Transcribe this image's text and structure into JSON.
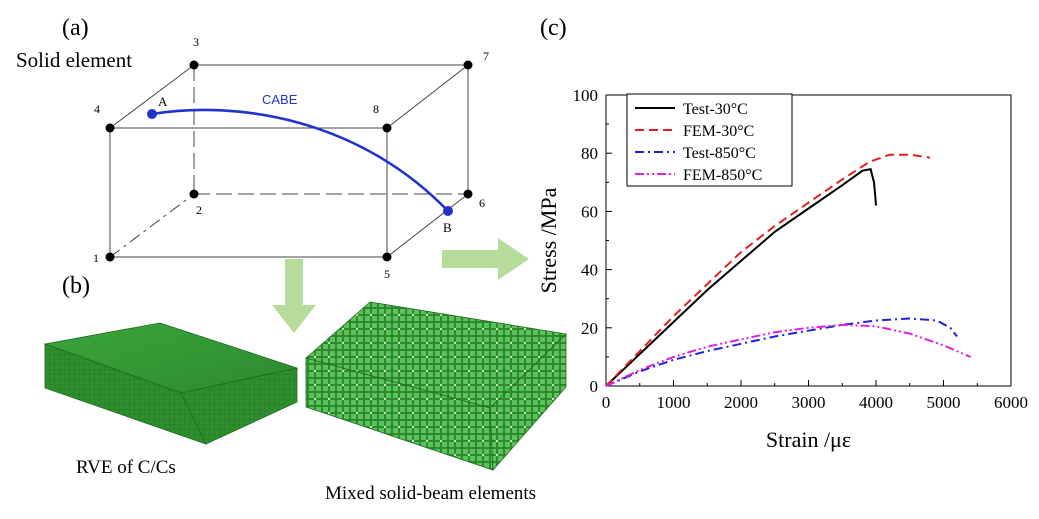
{
  "panels": {
    "a": {
      "letter": "(a)",
      "title": "Solid element",
      "node_labels": [
        "1",
        "2",
        "3",
        "4",
        "5",
        "6",
        "7",
        "8"
      ],
      "point_a": "A",
      "point_b": "B",
      "beam_label": "CABE"
    },
    "b": {
      "letter": "(b)",
      "left_caption": "RVE of C/Cs",
      "right_caption": "Mixed solid-beam elements"
    },
    "c": {
      "letter": "(c)"
    }
  },
  "colors": {
    "beam": "#2233cc",
    "mesh_green": "#2f8f2f",
    "arrow_green": "#b5dc9a"
  },
  "chart_data": {
    "type": "line",
    "xlabel": "Strain /με",
    "ylabel": "Stress /MPa",
    "xlim": [
      0,
      6000
    ],
    "ylim": [
      0,
      100
    ],
    "xticks": [
      "0",
      "1000",
      "2000",
      "3000",
      "4000",
      "5000",
      "6000"
    ],
    "yticks": [
      "0",
      "20",
      "40",
      "60",
      "80",
      "100"
    ],
    "legend_position": "top-left",
    "series": [
      {
        "name": "Test-30°C",
        "color": "#000000",
        "dash": "solid",
        "x": [
          0,
          500,
          1000,
          1500,
          2000,
          2500,
          3000,
          3500,
          3800,
          3920,
          3970,
          3990,
          4000
        ],
        "y": [
          0,
          11,
          22,
          33,
          43,
          53,
          61,
          69,
          74,
          74.5,
          70,
          65,
          62
        ]
      },
      {
        "name": "FEM-30°C",
        "color": "#e02020",
        "dash": "long",
        "x": [
          0,
          500,
          1000,
          1500,
          2000,
          2500,
          3000,
          3500,
          3900,
          4200,
          4500,
          4800
        ],
        "y": [
          0,
          12,
          24,
          35,
          46,
          55,
          63,
          71,
          77,
          79.5,
          79.5,
          78.5
        ]
      },
      {
        "name": "Test-850°C",
        "color": "#2020e0",
        "dash": "dashdot",
        "x": [
          0,
          500,
          1000,
          1500,
          2000,
          2500,
          3000,
          3500,
          4000,
          4500,
          4900,
          5100,
          5200
        ],
        "y": [
          0,
          5,
          9,
          12,
          14.5,
          17,
          19,
          21,
          22.5,
          23.2,
          22.5,
          20,
          17
        ]
      },
      {
        "name": "FEM-850°C",
        "color": "#e020e0",
        "dash": "dashdotdot",
        "x": [
          0,
          500,
          1000,
          1500,
          2000,
          2500,
          3000,
          3500,
          4000,
          4500,
          5000,
          5400
        ],
        "y": [
          0,
          5.5,
          10,
          13.5,
          16,
          18.5,
          20,
          21,
          20.5,
          18,
          14,
          10
        ]
      }
    ]
  }
}
